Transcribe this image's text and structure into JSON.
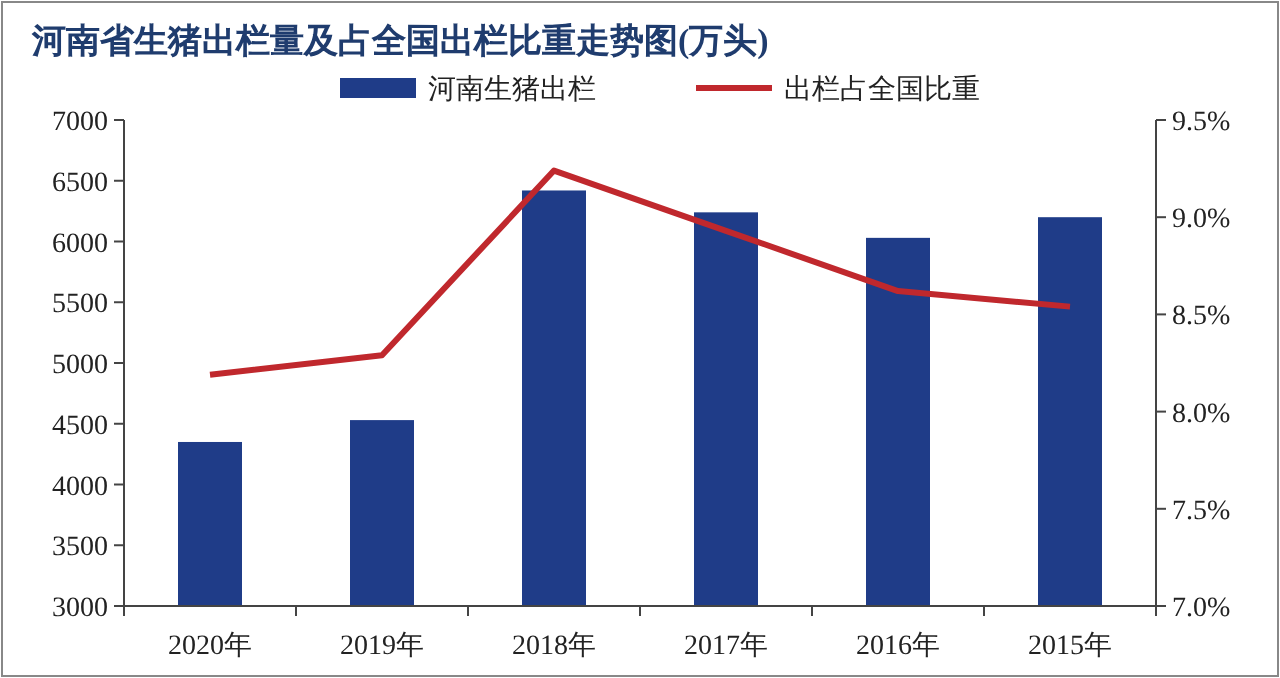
{
  "chart_data": {
    "type": "bar",
    "title": "河南省生猪出栏量及占全国出栏比重走势图(万头)",
    "categories": [
      "2020年",
      "2019年",
      "2018年",
      "2017年",
      "2016年",
      "2015年"
    ],
    "series": [
      {
        "name": "河南生猪出栏",
        "color": "#1f3c88",
        "values": [
          4350,
          4530,
          6420,
          6240,
          6030,
          6200
        ]
      },
      {
        "name": "出栏占全国比重",
        "color": "#c0282d",
        "type": "line",
        "axis": "y2",
        "values": [
          8.19,
          8.29,
          9.24,
          8.93,
          8.62,
          8.54
        ]
      }
    ],
    "ylim": [
      3000,
      7000
    ],
    "yticks": [
      3000,
      3500,
      4000,
      4500,
      5000,
      5500,
      6000,
      6500,
      7000
    ],
    "y2lim": [
      7.0,
      9.5
    ],
    "y2ticks": [
      {
        "value": 7.0,
        "label": "7.0%"
      },
      {
        "value": 7.5,
        "label": "7.5%"
      },
      {
        "value": 8.0,
        "label": "8.0%"
      },
      {
        "value": 8.5,
        "label": "8.5%"
      },
      {
        "value": 9.0,
        "label": "9.0%"
      },
      {
        "value": 9.5,
        "label": "9.5%"
      }
    ],
    "legend": "top",
    "grid": false
  }
}
